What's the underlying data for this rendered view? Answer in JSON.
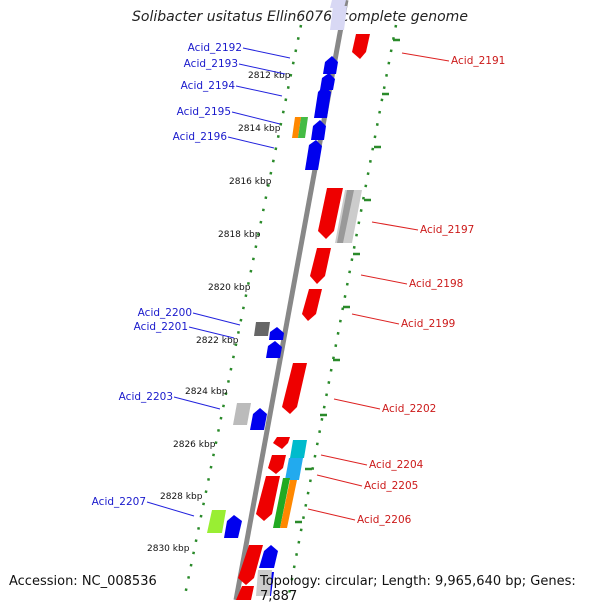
{
  "title": "Solibacter usitatus Ellin6076, complete genome",
  "footer": {
    "accession": "Accession: NC_008536",
    "topology": "Topology: circular; Length: 9,965,640 bp; Genes: 7,887"
  },
  "colors": {
    "forward_strand": "#0000ee",
    "reverse_strand": "#ee0000",
    "backbone": "#808080",
    "tick_dots": "#2a8a2a",
    "left_label": "#1a1acc",
    "right_label": "#cc1a1a"
  },
  "ticks": [
    "2812 kbp",
    "2814 kbp",
    "2816 kbp",
    "2818 kbp",
    "2820 kbp",
    "2822 kbp",
    "2824 kbp",
    "2826 kbp",
    "2828 kbp",
    "2830 kbp"
  ],
  "genes_left": [
    "Acid_2192",
    "Acid_2193",
    "Acid_2194",
    "Acid_2195",
    "Acid_2196",
    "Acid_2200",
    "Acid_2201",
    "Acid_2203",
    "Acid_2207"
  ],
  "genes_right": [
    "Acid_2191",
    "Acid_2197",
    "Acid_2198",
    "Acid_2199",
    "Acid_2202",
    "Acid_2204",
    "Acid_2205",
    "Acid_2206"
  ]
}
